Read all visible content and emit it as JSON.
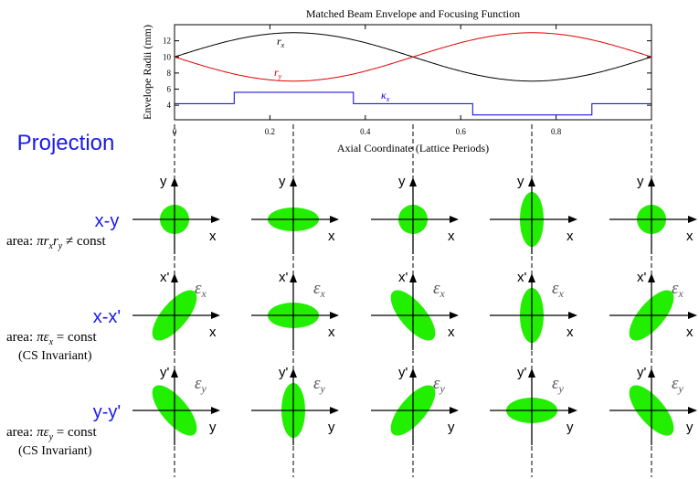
{
  "chart_data": {
    "type": "line",
    "title": "Matched Beam Envelope and Focusing Function",
    "xlabel": "Axial Coordinate (Lattice Periods)",
    "ylabel": "Envelope Radii (mm)",
    "xlim": [
      0,
      1
    ],
    "ylim": [
      2.2,
      14
    ],
    "x_ticks": [
      "0",
      "0.2",
      "0.4",
      "0.6",
      "0.8"
    ],
    "y_ticks": [
      "4",
      "6",
      "8",
      "10",
      "12"
    ],
    "grid": false,
    "series": [
      {
        "name": "r_x",
        "label": "r",
        "subscript": "x",
        "color": "#000000",
        "x": [
          0,
          0.25,
          0.5,
          0.75,
          1
        ],
        "y": [
          10.0,
          13.0,
          10.0,
          7.0,
          10.0
        ]
      },
      {
        "name": "r_y",
        "label": "r",
        "subscript": "y",
        "color": "#e00000",
        "x": [
          0,
          0.25,
          0.5,
          0.75,
          1
        ],
        "y": [
          10.0,
          7.0,
          10.0,
          13.0,
          10.0
        ]
      },
      {
        "name": "kappa_x",
        "label": "κ",
        "subscript": "x",
        "color": "#0000dd",
        "step": true,
        "x": [
          0,
          0.125,
          0.125,
          0.375,
          0.375,
          0.625,
          0.625,
          0.875,
          0.875,
          1
        ],
        "y": [
          4.2,
          4.2,
          5.6,
          5.6,
          4.2,
          4.2,
          2.8,
          2.8,
          4.2,
          4.2
        ]
      }
    ]
  },
  "projection_title": "Projection",
  "blue_color": "#1a1aee",
  "ellipse_color": "#22ee00",
  "rows": [
    {
      "label": "x-y",
      "area_prefix": "area:",
      "area_formula": "πr",
      "area_sub1": "x",
      "area_mid": "r",
      "area_sub2": "y",
      "area_suffix": " ≠ const",
      "note": "",
      "h_axis": "x",
      "v_axis": "y",
      "emittance": "",
      "emit_sub": "",
      "ellipses": [
        {
          "rx": 16,
          "ry": 16,
          "tilt": 0
        },
        {
          "rx": 28,
          "ry": 13,
          "tilt": 0
        },
        {
          "rx": 16,
          "ry": 16,
          "tilt": 0
        },
        {
          "rx": 13,
          "ry": 30,
          "tilt": 0
        },
        {
          "rx": 16,
          "ry": 16,
          "tilt": 0
        }
      ]
    },
    {
      "label": "x-x'",
      "area_prefix": "area:",
      "area_formula": "πε",
      "area_sub1": "x",
      "area_mid": "",
      "area_sub2": "",
      "area_suffix": " = const",
      "note": "(CS Invariant)",
      "h_axis": "x",
      "v_axis": "x'",
      "emittance": "ε",
      "emit_sub": "x",
      "ellipses": [
        {
          "rx": 34,
          "ry": 14,
          "tilt": -50
        },
        {
          "rx": 28,
          "ry": 14,
          "tilt": 0
        },
        {
          "rx": 34,
          "ry": 14,
          "tilt": 50
        },
        {
          "rx": 13,
          "ry": 30,
          "tilt": 0
        },
        {
          "rx": 34,
          "ry": 14,
          "tilt": -50
        }
      ]
    },
    {
      "label": "y-y'",
      "area_prefix": "area:",
      "area_formula": "πε",
      "area_sub1": "y",
      "area_mid": "",
      "area_sub2": "",
      "area_suffix": " = const",
      "note": "(CS Invariant)",
      "h_axis": "y",
      "v_axis": "y'",
      "emittance": "ε",
      "emit_sub": "y",
      "ellipses": [
        {
          "rx": 34,
          "ry": 14,
          "tilt": 50
        },
        {
          "rx": 13,
          "ry": 30,
          "tilt": 0
        },
        {
          "rx": 34,
          "ry": 14,
          "tilt": -50
        },
        {
          "rx": 28,
          "ry": 14,
          "tilt": 0
        },
        {
          "rx": 34,
          "ry": 14,
          "tilt": 50
        }
      ]
    }
  ]
}
